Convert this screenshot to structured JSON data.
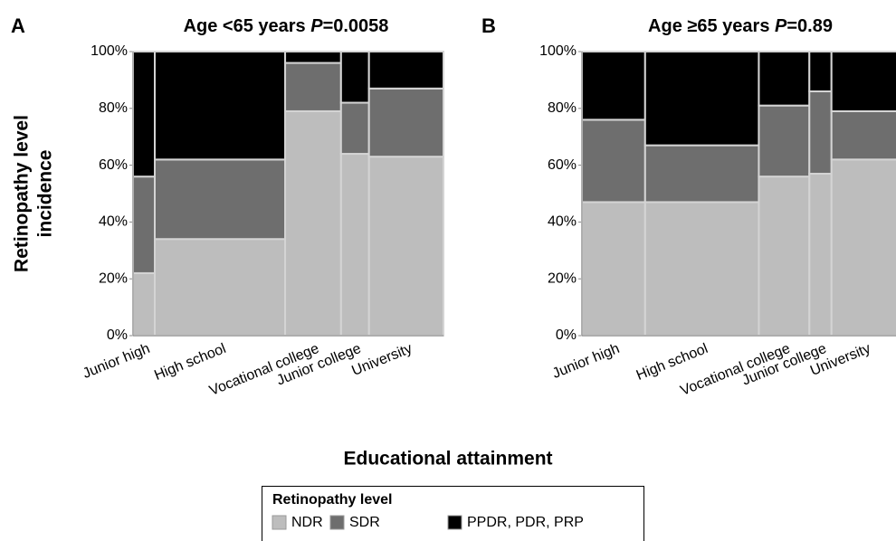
{
  "chart_data": [
    {
      "type": "mosaic",
      "panel_label": "A",
      "title": "Age <65 years ",
      "stat_symbol": "P",
      "stat_value": "=0.0058",
      "ylabel": [
        "Retinopathy level",
        "incidence"
      ],
      "categories": [
        "Junior high",
        "High school",
        "Vocational college",
        "Junior college",
        "University"
      ],
      "widths": [
        7,
        42,
        18,
        9,
        24
      ],
      "series": [
        {
          "name": "NDR",
          "color": "#bdbdbd",
          "values": [
            22,
            34,
            79,
            64,
            63
          ]
        },
        {
          "name": "SDR",
          "color": "#6e6e6e",
          "values": [
            34,
            28,
            17,
            18,
            24
          ]
        },
        {
          "name": "PPDR, PDR, PRP",
          "color": "#000000",
          "values": [
            44,
            38,
            4,
            18,
            13
          ]
        }
      ],
      "ylim": [
        0,
        100
      ],
      "yticks": [
        {
          "value": 0,
          "label": "0%"
        },
        {
          "value": 20,
          "label": "20%"
        },
        {
          "value": 40,
          "label": "40%"
        },
        {
          "value": 60,
          "label": "60%"
        },
        {
          "value": 80,
          "label": "80%"
        },
        {
          "value": 100,
          "label": "100%"
        }
      ]
    },
    {
      "type": "mosaic",
      "panel_label": "B",
      "title": "Age ≥65 years ",
      "stat_symbol": "P",
      "stat_value": "=0.89",
      "categories": [
        "Junior high",
        "High school",
        "Vocational college",
        "Junior college",
        "University"
      ],
      "widths": [
        20,
        36,
        16,
        7,
        21
      ],
      "series": [
        {
          "name": "NDR",
          "color": "#bdbdbd",
          "values": [
            47,
            47,
            56,
            57,
            62
          ]
        },
        {
          "name": "SDR",
          "color": "#6e6e6e",
          "values": [
            29,
            20,
            25,
            29,
            17
          ]
        },
        {
          "name": "PPDR, PDR, PRP",
          "color": "#000000",
          "values": [
            24,
            33,
            19,
            14,
            21
          ]
        }
      ],
      "ylim": [
        0,
        100
      ],
      "yticks": [
        {
          "value": 0,
          "label": "0%"
        },
        {
          "value": 20,
          "label": "20%"
        },
        {
          "value": 40,
          "label": "40%"
        },
        {
          "value": 60,
          "label": "60%"
        },
        {
          "value": 80,
          "label": "80%"
        },
        {
          "value": 100,
          "label": "100%"
        }
      ]
    }
  ],
  "figure": {
    "xlabel": "Educational attainment",
    "legend_title": "Retinopathy level"
  }
}
